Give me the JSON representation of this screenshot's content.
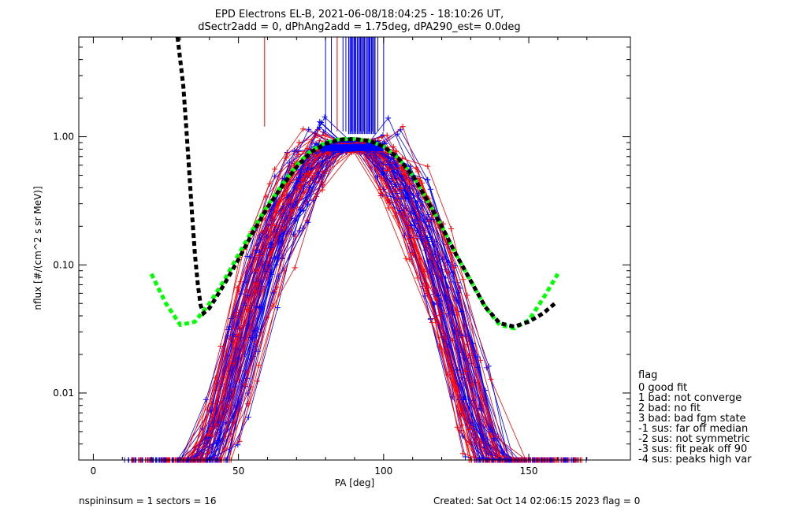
{
  "chart_data": {
    "type": "line",
    "title": "EPD Electrons EL-B, 2021-06-08/18:04:25 - 18:10:26 UT,",
    "subtitle": "dSectr2add = 0, dPhAng2add = 1.75deg, dPA290_est=    0.0deg",
    "xlabel": "PA [deg]",
    "ylabel": "nflux [#/(cm^2 s sr MeV)]",
    "xlim": [
      -5,
      185
    ],
    "ylim": [
      0.003,
      6
    ],
    "yscale": "log",
    "xticks": [
      0,
      50,
      100,
      150
    ],
    "xtick_labels": [
      "0",
      "50",
      "100",
      "150"
    ],
    "yticks": [
      0.01,
      0.1,
      1.0
    ],
    "ytick_labels": [
      "0.01",
      "0.10",
      "1.00"
    ],
    "grid": false,
    "legend_position": "right",
    "colors": {
      "red": "#ff0000",
      "blue": "#0000ff",
      "green": "#00ff00",
      "black": "#000000"
    },
    "series": [
      {
        "color": "#00ff00",
        "style": "dashed",
        "x": [
          20,
          25,
          30,
          35,
          40,
          45,
          50,
          55,
          60,
          65,
          70,
          75,
          80,
          85,
          90,
          95,
          100,
          105,
          110,
          115,
          120,
          125,
          130,
          135,
          140,
          145,
          150,
          155,
          160
        ],
        "y": [
          0.085,
          0.05,
          0.034,
          0.036,
          0.05,
          0.075,
          0.12,
          0.19,
          0.29,
          0.42,
          0.6,
          0.78,
          0.9,
          0.96,
          0.96,
          0.93,
          0.84,
          0.68,
          0.5,
          0.32,
          0.2,
          0.12,
          0.075,
          0.047,
          0.034,
          0.032,
          0.037,
          0.055,
          0.085
        ]
      },
      {
        "color": "#000000",
        "style": "dashed",
        "x": [
          29,
          31,
          32,
          33,
          34,
          35,
          36,
          37,
          38,
          40,
          45,
          50,
          55,
          60,
          65,
          70,
          75,
          80,
          85,
          90,
          95,
          100,
          105,
          110,
          115,
          120,
          125,
          130,
          135,
          140,
          145,
          150,
          155,
          159
        ],
        "y": [
          6,
          2.5,
          1.2,
          0.55,
          0.25,
          0.12,
          0.07,
          0.048,
          0.042,
          0.046,
          0.07,
          0.11,
          0.18,
          0.28,
          0.41,
          0.58,
          0.76,
          0.88,
          0.95,
          0.96,
          0.93,
          0.84,
          0.68,
          0.5,
          0.32,
          0.2,
          0.12,
          0.075,
          0.047,
          0.035,
          0.033,
          0.036,
          0.042,
          0.05
        ]
      }
    ],
    "bundle": {
      "count": 90,
      "peak": [
        80,
        98
      ],
      "peak_flux": [
        0.7,
        1.0
      ],
      "low_pa": [
        12,
        35
      ],
      "high_pa": [
        145,
        168
      ],
      "wing_flux": [
        0.003,
        0.06
      ],
      "vertical_pa": [
        59,
        80,
        82,
        84,
        86,
        87,
        88,
        89,
        90,
        91,
        92,
        93,
        94,
        95,
        96,
        97,
        98,
        100
      ]
    }
  },
  "legend": {
    "title": "flag",
    "items": [
      " 0 good fit",
      " 1 bad: not converge",
      " 2 bad: no fit",
      " 3 bad: bad fgm state",
      "-1 sus: far off median",
      "-2 sus: not symmetric",
      "-3 sus: fit peak off 90",
      "-4 sus: peaks high var"
    ]
  },
  "footer": {
    "left": "nspininsum =  1  sectors = 16",
    "right": "Created: Sat Oct 14 02:06:15 2023   flag = 0"
  }
}
